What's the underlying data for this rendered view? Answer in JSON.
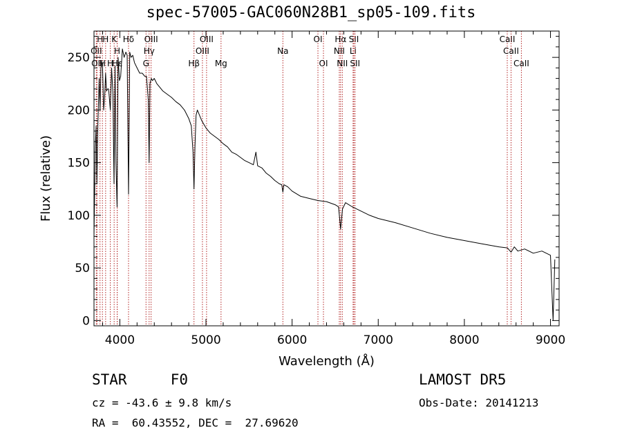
{
  "title": "spec-57005-GAC060N28B1_sp05-109.fits",
  "info": {
    "class": "STAR     F0",
    "survey": "LAMOST DR5",
    "cz": "cz = -43.6 ± 9.8 km/s",
    "obs_date": "Obs-Date: 20141213",
    "radec": "RA =  60.43552, DEC =  27.69620"
  },
  "colors": {
    "spectrum": "#000000",
    "line_markers": "#b22222",
    "text": "#000000"
  },
  "chart_data": {
    "type": "line",
    "title": "spec-57005-GAC060N28B1_sp05-109.fits",
    "xlabel": "Wavelength (Å)",
    "ylabel": "Flux (relative)",
    "xlim": [
      3700,
      9100
    ],
    "ylim": [
      -5,
      275
    ],
    "xticks": [
      4000,
      5000,
      6000,
      7000,
      8000,
      9000
    ],
    "yticks": [
      0,
      50,
      100,
      150,
      200,
      250
    ],
    "grid": false,
    "series": [
      {
        "x": [
          3700,
          3715,
          3725,
          3734,
          3745,
          3760,
          3771,
          3780,
          3798,
          3812,
          3825,
          3835,
          3845,
          3858,
          3870,
          3889,
          3905,
          3920,
          3933,
          3945,
          3955,
          3968,
          3980,
          3995,
          4010,
          4030,
          4050,
          4070,
          4085,
          4101,
          4115,
          4130,
          4150,
          4170,
          4200,
          4230,
          4260,
          4290,
          4310,
          4330,
          4340,
          4350,
          4365,
          4380,
          4400,
          4430,
          4460,
          4500,
          4550,
          4600,
          4650,
          4700,
          4750,
          4800,
          4830,
          4850,
          4861,
          4872,
          4885,
          4900,
          4950,
          5000,
          5050,
          5100,
          5150,
          5200,
          5250,
          5300,
          5350,
          5400,
          5450,
          5500,
          5550,
          5580,
          5600,
          5650,
          5700,
          5750,
          5800,
          5850,
          5880,
          5893,
          5905,
          5950,
          6000,
          6100,
          6200,
          6300,
          6400,
          6500,
          6540,
          6563,
          6585,
          6620,
          6700,
          6800,
          6900,
          7000,
          7200,
          7400,
          7600,
          7800,
          8000,
          8200,
          8400,
          8500,
          8542,
          8580,
          8620,
          8662,
          8700,
          8800,
          8900,
          9000,
          9030,
          9050
        ],
        "values": [
          80,
          165,
          185,
          130,
          185,
          230,
          200,
          240,
          245,
          200,
          215,
          235,
          218,
          220,
          220,
          200,
          240,
          215,
          130,
          242,
          150,
          108,
          250,
          228,
          232,
          258,
          250,
          255,
          252,
          120,
          255,
          250,
          252,
          245,
          240,
          235,
          235,
          232,
          232,
          210,
          150,
          225,
          230,
          228,
          230,
          225,
          222,
          218,
          215,
          212,
          208,
          205,
          200,
          192,
          185,
          160,
          125,
          165,
          195,
          200,
          190,
          183,
          178,
          175,
          172,
          168,
          165,
          160,
          158,
          155,
          152,
          150,
          148,
          160,
          147,
          145,
          140,
          137,
          133,
          130,
          129,
          122,
          129,
          127,
          123,
          118,
          116,
          114,
          113,
          110,
          108,
          87,
          106,
          112,
          108,
          104,
          100,
          97,
          93,
          88,
          83,
          79,
          76,
          73,
          70,
          69,
          65,
          70,
          66,
          67,
          68,
          64,
          66,
          62,
          0,
          58
        ]
      }
    ],
    "lines": [
      {
        "x": 3727,
        "label": "OII",
        "row": 1
      },
      {
        "x": 3735,
        "label": "OII",
        "row": 2
      },
      {
        "x": 3770,
        "label": "H",
        "row": 0
      },
      {
        "x": 3798,
        "label": "H",
        "row": 2
      },
      {
        "x": 3835,
        "label": "H",
        "row": 0
      },
      {
        "x": 3889,
        "label": "H",
        "row": 2
      },
      {
        "x": 3934,
        "label": "K",
        "row": 0
      },
      {
        "x": 3969,
        "label": "H",
        "row": 1
      },
      {
        "x": 3970,
        "label": "Hε",
        "row": 2
      },
      {
        "x": 4101,
        "label": "Hδ",
        "row": 0
      },
      {
        "x": 4304,
        "label": "G",
        "row": 2
      },
      {
        "x": 4340,
        "label": "Hγ",
        "row": 1
      },
      {
        "x": 4363,
        "label": "OIII",
        "row": 0
      },
      {
        "x": 4861,
        "label": "Hβ",
        "row": 2
      },
      {
        "x": 4959,
        "label": "OIII",
        "row": 1
      },
      {
        "x": 5007,
        "label": "OIII",
        "row": 0
      },
      {
        "x": 5175,
        "label": "Mg",
        "row": 2
      },
      {
        "x": 5893,
        "label": "Na",
        "row": 1
      },
      {
        "x": 6300,
        "label": "OI",
        "row": 0
      },
      {
        "x": 6364,
        "label": "OI",
        "row": 2
      },
      {
        "x": 6548,
        "label": "NII",
        "row": 1
      },
      {
        "x": 6563,
        "label": "Hα",
        "row": 0
      },
      {
        "x": 6583,
        "label": "NII",
        "row": 2
      },
      {
        "x": 6708,
        "label": "Li",
        "row": 1
      },
      {
        "x": 6717,
        "label": "SII",
        "row": 0
      },
      {
        "x": 6731,
        "label": "SII",
        "row": 2
      },
      {
        "x": 8498,
        "label": "CaII",
        "row": 0
      },
      {
        "x": 8542,
        "label": "CaII",
        "row": 1
      },
      {
        "x": 8662,
        "label": "CaII",
        "row": 2
      }
    ]
  }
}
